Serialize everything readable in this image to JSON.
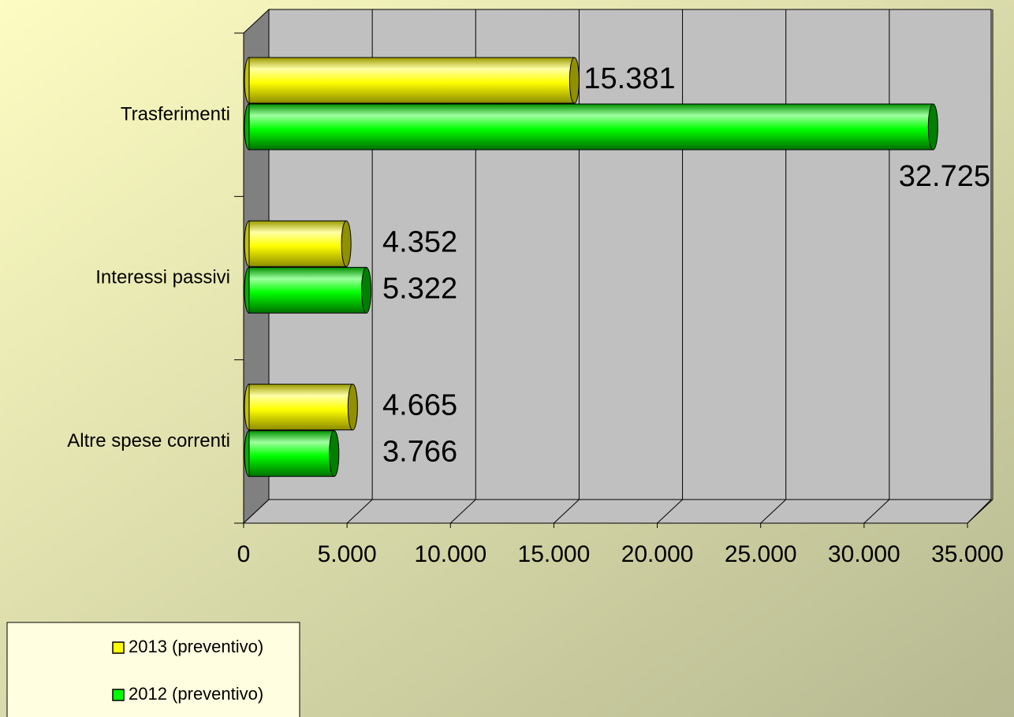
{
  "chart_data": {
    "type": "bar3d",
    "categories": [
      "Trasferimenti",
      "Interessi passivi",
      "Altre spese correnti"
    ],
    "series": [
      {
        "name": "2013 (preventivo)",
        "color": "#ffff00",
        "values": [
          15381,
          4352,
          4665
        ],
        "value_labels": [
          "15.381",
          "4.352",
          "4.665"
        ]
      },
      {
        "name": "2012 (preventivo)",
        "color": "#00ff00",
        "values": [
          32725,
          5322,
          3766
        ],
        "value_labels": [
          "32.725",
          "5.322",
          "3.766"
        ]
      }
    ],
    "xlim": [
      0,
      35000
    ],
    "xticks": [
      0,
      {
        "value": 5000,
        "label": "5.000"
      },
      {
        "value": 10000,
        "label": "10.000"
      },
      {
        "value": 15000,
        "label": "15.000"
      },
      {
        "value": 20000,
        "label": "20.000"
      },
      {
        "value": 25000,
        "label": "25.000"
      },
      {
        "value": 30000,
        "label": "30.000"
      },
      {
        "value": 35000,
        "label": "35.000"
      }
    ],
    "grid": true,
    "legend": "bottom-left"
  }
}
